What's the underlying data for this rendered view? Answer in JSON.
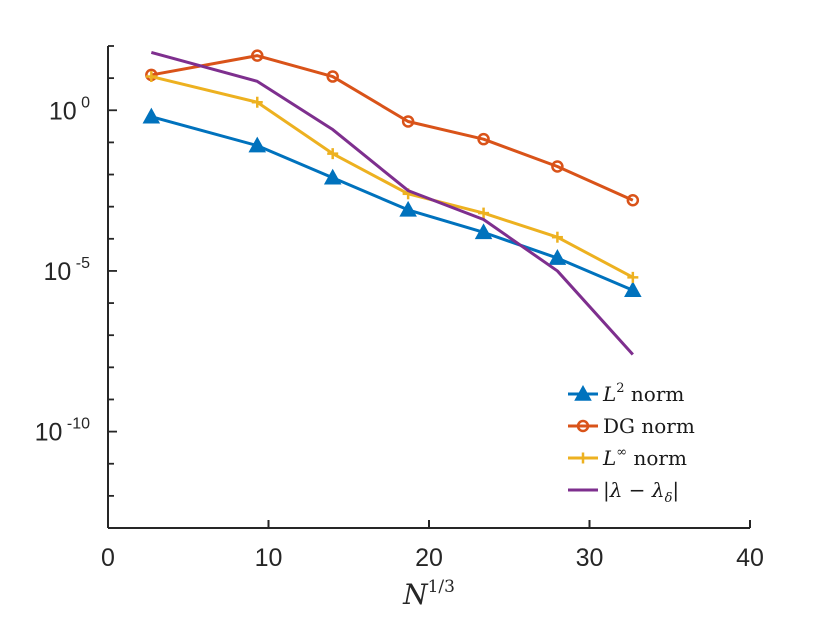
{
  "chart_data": {
    "type": "line",
    "title": "",
    "xlabel": {
      "base": "N",
      "exponent": "1/3"
    },
    "ylabel": "",
    "xscale": "linear",
    "yscale": "log",
    "xlim": [
      0,
      40
    ],
    "ylim_exponent": [
      -13,
      2
    ],
    "x_ticks": [
      "0",
      "10",
      "20",
      "30",
      "40"
    ],
    "y_ticks": [
      {
        "base": "10",
        "exponent": "0",
        "value_exponent": 0
      },
      {
        "base": "10",
        "exponent": "-5",
        "value_exponent": -5
      },
      {
        "base": "10",
        "exponent": "-10",
        "value_exponent": -10
      }
    ],
    "grid": false,
    "legend_position": "bottom-right",
    "series": [
      {
        "name": "L² norm",
        "legend": {
          "pre": "L",
          "sup": "2",
          "post": " norm"
        },
        "color": "#0072BD",
        "marker": "triangle",
        "x": [
          2.7,
          9.3,
          14.0,
          18.7,
          23.4,
          28.0,
          32.7
        ],
        "log10_y": [
          -0.2,
          -1.1,
          -2.1,
          -3.1,
          -3.8,
          -4.6,
          -5.6
        ]
      },
      {
        "name": "DG norm",
        "legend": {
          "pre": "DG norm",
          "sup": "",
          "post": ""
        },
        "color": "#D95319",
        "marker": "circle",
        "x": [
          2.7,
          9.3,
          14.0,
          18.7,
          23.4,
          28.0,
          32.7
        ],
        "log10_y": [
          1.1,
          1.7,
          1.05,
          -0.35,
          -0.9,
          -1.75,
          -2.8
        ]
      },
      {
        "name": "L∞ norm",
        "legend": {
          "pre": "L",
          "sup": "∞",
          "post": " norm"
        },
        "color": "#EDB120",
        "marker": "plus",
        "x": [
          2.7,
          9.3,
          14.0,
          18.7,
          23.4,
          28.0,
          32.7
        ],
        "log10_y": [
          1.05,
          0.25,
          -1.35,
          -2.6,
          -3.2,
          -3.95,
          -5.2
        ]
      },
      {
        "name": "|λ − λδ|",
        "legend": {
          "pre": "|λ − λ",
          "sub": "δ",
          "post": "|"
        },
        "color": "#7E2F8E",
        "marker": "none",
        "x": [
          2.7,
          9.3,
          14.0,
          18.7,
          23.4,
          28.0,
          32.7
        ],
        "log10_y": [
          1.8,
          0.9,
          -0.6,
          -2.5,
          -3.4,
          -5.0,
          -7.6
        ]
      }
    ]
  }
}
